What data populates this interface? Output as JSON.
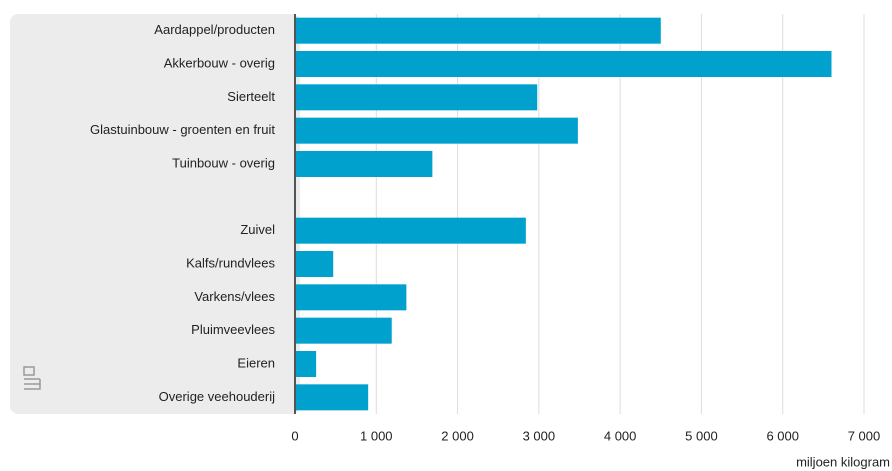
{
  "chart_data": {
    "type": "barh",
    "categories": [
      "Aardappel/producten",
      "Akkerbouw - overig",
      "Sierteelt",
      "Glastuinbouw - groenten en fruit",
      "Tuinbouw - overig",
      null,
      "Zuivel",
      "Kalfs/rundvlees",
      "Varkens/vlees",
      "Pluimveevlees",
      "Eieren",
      "Overige veehouderij"
    ],
    "values": [
      4500,
      6600,
      2980,
      3480,
      1690,
      null,
      2840,
      470,
      1370,
      1190,
      260,
      900
    ],
    "color": "#00a1cd",
    "xlim": [
      0,
      7000
    ],
    "xticks": [
      0,
      {
        "value": 1000,
        "label": "1 000"
      },
      {
        "value": 2000,
        "label": "2 000"
      },
      {
        "value": 3000,
        "label": "3 000"
      },
      {
        "value": 4000,
        "label": "4 000"
      },
      {
        "value": 5000,
        "label": "5 000"
      },
      {
        "value": 6000,
        "label": "6 000"
      },
      {
        "value": 7000,
        "label": "7 000"
      }
    ],
    "xlabel": "miljoen kilogram",
    "grid": true
  }
}
